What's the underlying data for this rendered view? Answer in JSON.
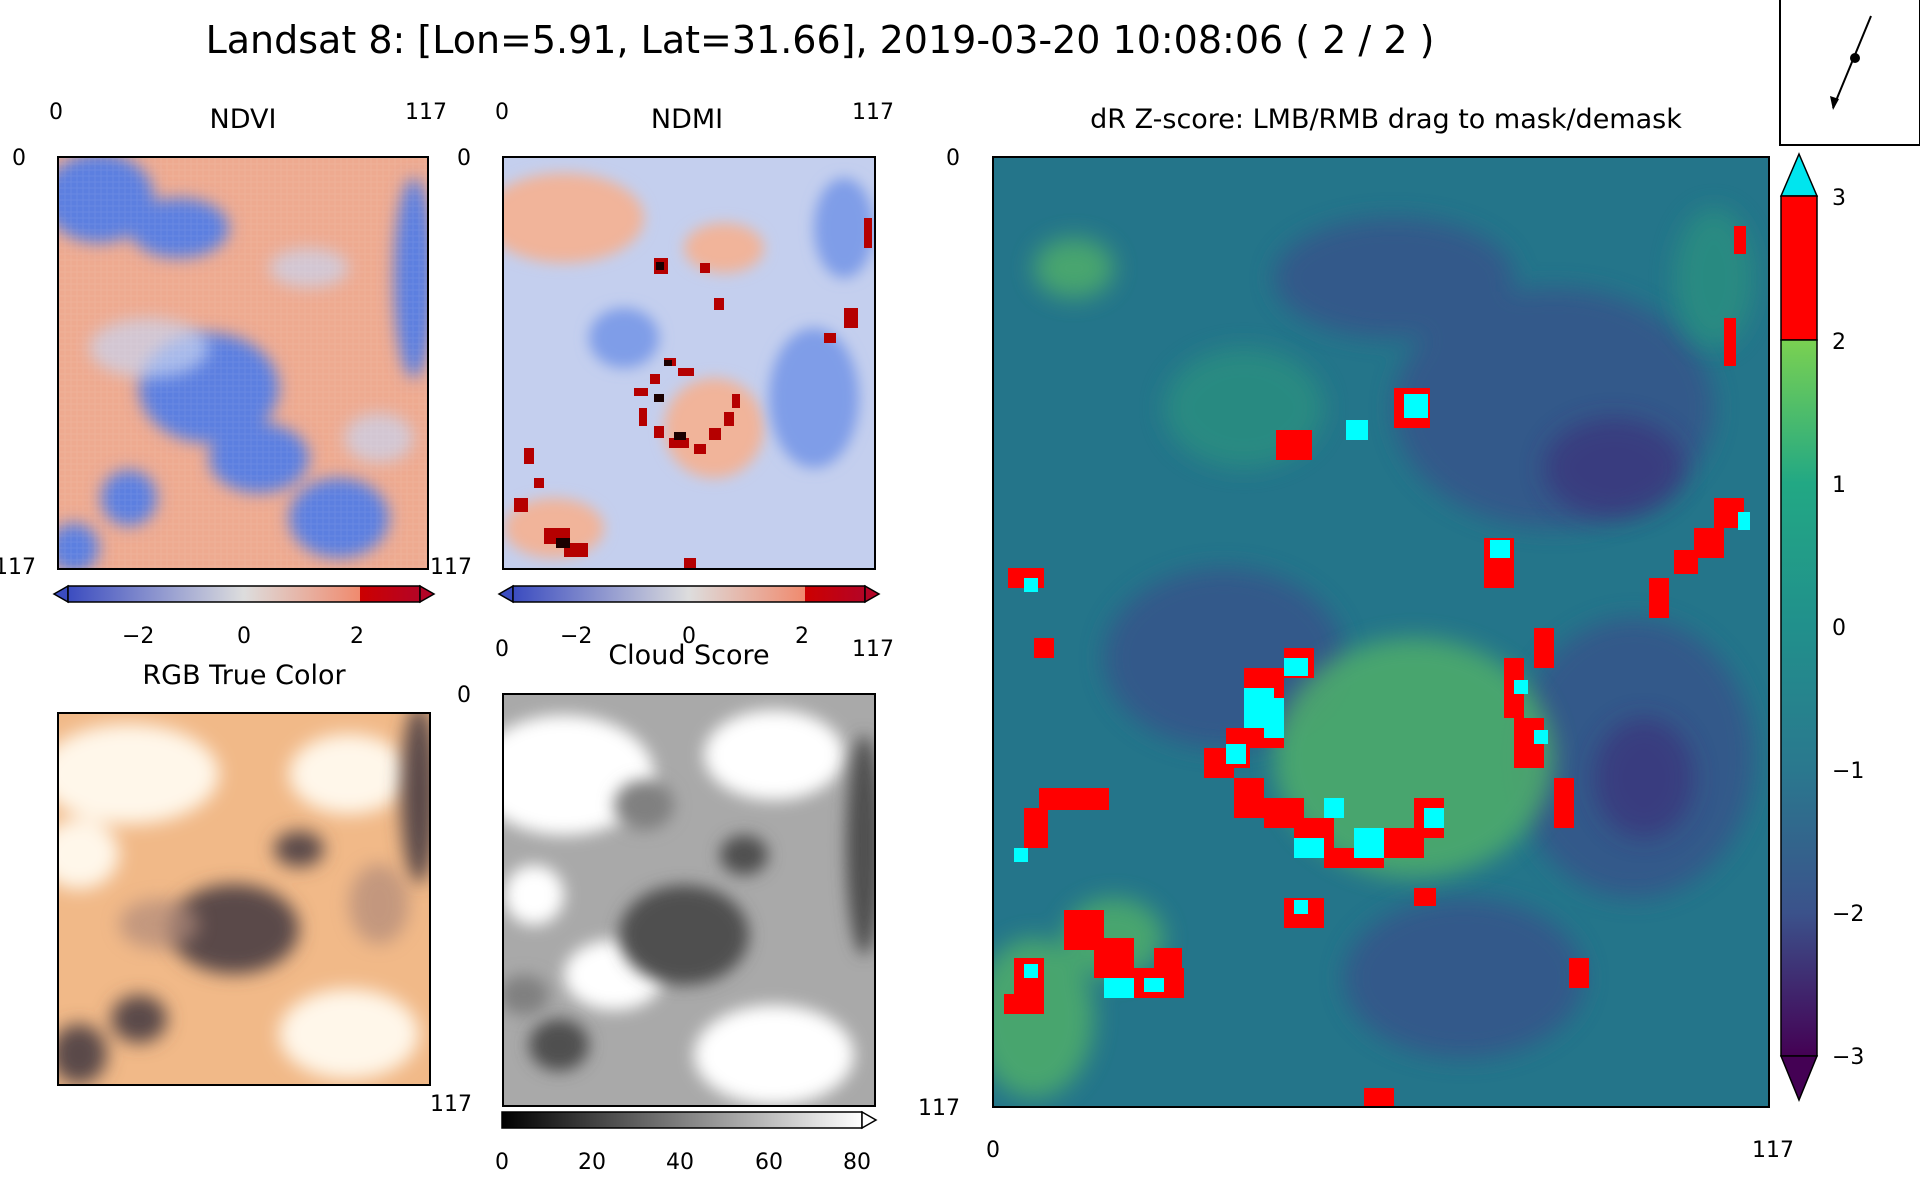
{
  "window": {
    "title": "Landsat 8: [Lon=5.91, Lat=31.66], 2019-03-20 10:08:06 ( 2 / 2 )"
  },
  "panels": {
    "ndvi": {
      "title": "NDVI",
      "x_ticks": [
        "0",
        "117"
      ],
      "y_ticks": [
        "0",
        "117"
      ],
      "colorbar": {
        "ticks": [
          "−2",
          "0",
          "2"
        ],
        "colormap": "coolwarm",
        "range": [
          -3,
          3
        ],
        "extend": "both",
        "over_color": "#cc0000"
      }
    },
    "ndmi": {
      "title": "NDMI",
      "x_ticks": [
        "0",
        "117"
      ],
      "y_ticks": [
        "0",
        "117"
      ],
      "colorbar": {
        "ticks": [
          "−2",
          "0",
          "2"
        ],
        "colormap": "coolwarm",
        "range": [
          -3,
          3
        ],
        "extend": "both",
        "over_color": "#cc0000"
      }
    },
    "rgb": {
      "title": "RGB True Color"
    },
    "cloud": {
      "title": "Cloud Score",
      "x_ticks": [
        "0",
        "117"
      ],
      "y_ticks": [
        "0",
        "117"
      ],
      "colorbar": {
        "ticks": [
          "0",
          "20",
          "40",
          "60",
          "80"
        ],
        "colormap": "gray",
        "range": [
          0,
          80
        ],
        "extend": "max"
      }
    },
    "zscore": {
      "title": "dR Z-score: LMB/RMB drag to mask/demask",
      "x_ticks": [
        "0",
        "117"
      ],
      "y_ticks": [
        "0",
        "117"
      ],
      "colorbar": {
        "ticks": [
          "3",
          "2",
          "1",
          "0",
          "−1",
          "−2",
          "−3"
        ],
        "colormap": "viridis",
        "range": [
          -3,
          3
        ],
        "band_color": "#ff0000",
        "over_color": "#00e5ee",
        "under_color": "#440154"
      },
      "mask_colors": {
        "flagged": "#ff0000",
        "masked": "#00ffff"
      }
    }
  },
  "compass": {
    "icon": "north-arrow-icon"
  },
  "colors": {
    "ndvi_low": "#4a6fe3",
    "ndvi_high": "#f4a582",
    "rgb_light": "#f6c99a",
    "rgb_dark": "#5a4a48",
    "viridis_mid": "#21908c"
  }
}
